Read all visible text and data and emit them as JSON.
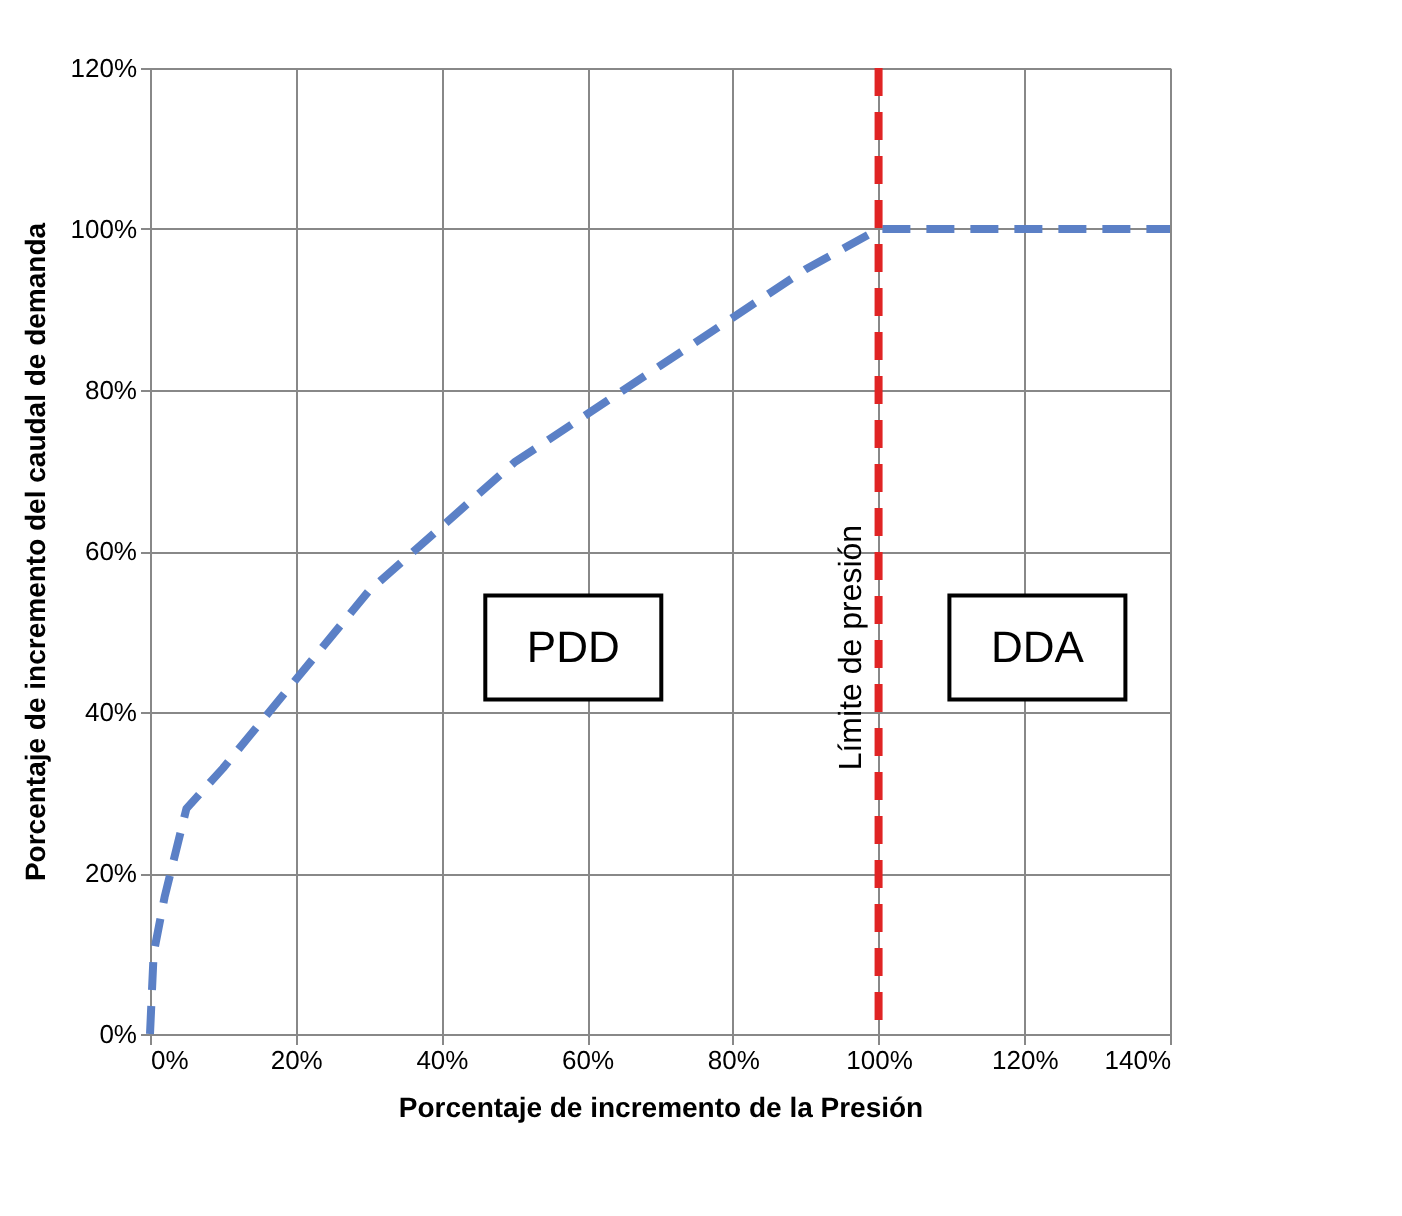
{
  "chart_data": {
    "type": "line",
    "xlabel": "Porcentaje de incremento de la Presión",
    "ylabel": "Porcentaje de incremento del caudal de demanda",
    "series": [
      {
        "color": "#5b80c6",
        "x": [
          0,
          0.5,
          2,
          5,
          10,
          20,
          30,
          40,
          50,
          60,
          70,
          80,
          90,
          100,
          120,
          140
        ],
        "values": [
          0,
          10,
          17,
          28,
          33,
          44,
          55,
          63,
          71,
          77,
          83,
          89,
          95,
          100,
          100,
          100
        ]
      }
    ],
    "xlim": [
      0,
      140
    ],
    "ylim": [
      0,
      120
    ],
    "xticks": [
      {
        "value": 0,
        "label": "0%"
      },
      {
        "value": 20,
        "label": "20%"
      },
      {
        "value": 40,
        "label": "40%"
      },
      {
        "value": 60,
        "label": "60%"
      },
      {
        "value": 80,
        "label": "80%"
      },
      {
        "value": 100,
        "label": "100%"
      },
      {
        "value": 120,
        "label": "120%"
      },
      {
        "value": 140,
        "label": "140%"
      }
    ],
    "yticks": [
      {
        "value": 0,
        "label": "0%"
      },
      {
        "value": 20,
        "label": "20%"
      },
      {
        "value": 40,
        "label": "40%"
      },
      {
        "value": 60,
        "label": "60%"
      },
      {
        "value": 80,
        "label": "80%"
      },
      {
        "value": 100,
        "label": "100%"
      },
      {
        "value": 120,
        "label": "120%"
      }
    ],
    "ref_lines": [
      {
        "axis": "x",
        "value": 100,
        "label": "Límite de presión",
        "color": "#e02424",
        "line_style": "dashed"
      }
    ],
    "annotations": [
      "PDD",
      "DDA"
    ],
    "grid": true,
    "line_style": "dashed",
    "marker": "none"
  }
}
